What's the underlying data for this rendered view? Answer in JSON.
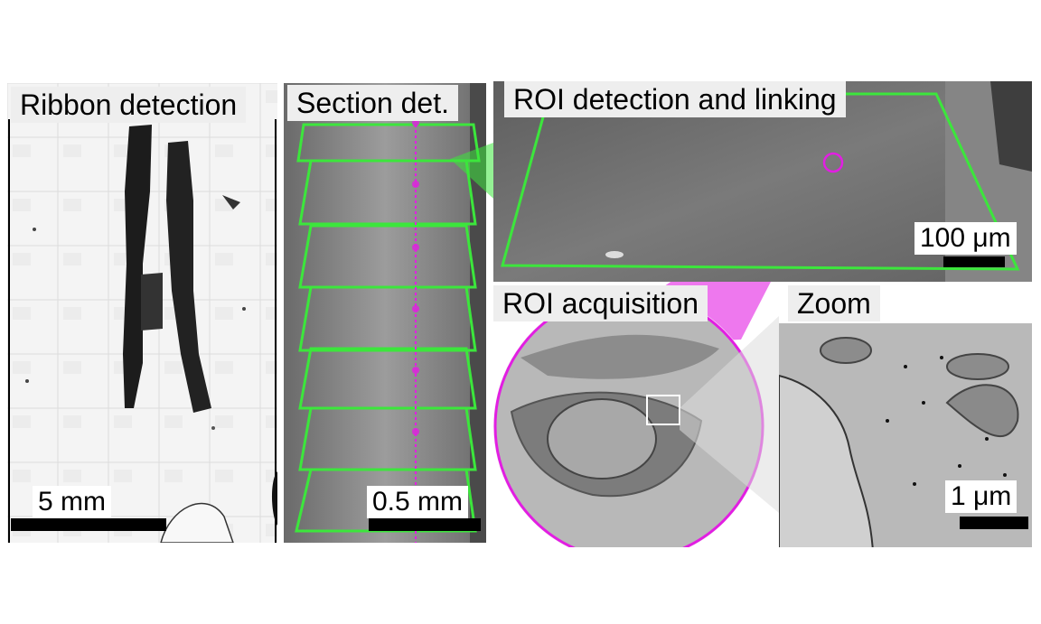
{
  "panels": {
    "ribbon": {
      "title": "Ribbon detection",
      "scale": "5 mm"
    },
    "section": {
      "title": "Section det.",
      "scale": "0.5 mm"
    },
    "roi": {
      "title": "ROI detection and linking",
      "scale": "100 μm"
    },
    "acquisition": {
      "title": "ROI acquisition"
    },
    "zoom": {
      "title": "Zoom",
      "scale": "1 μm"
    }
  },
  "colors": {
    "detection_outline": "#3ce63c",
    "link_magenta": "#e21ee2"
  }
}
